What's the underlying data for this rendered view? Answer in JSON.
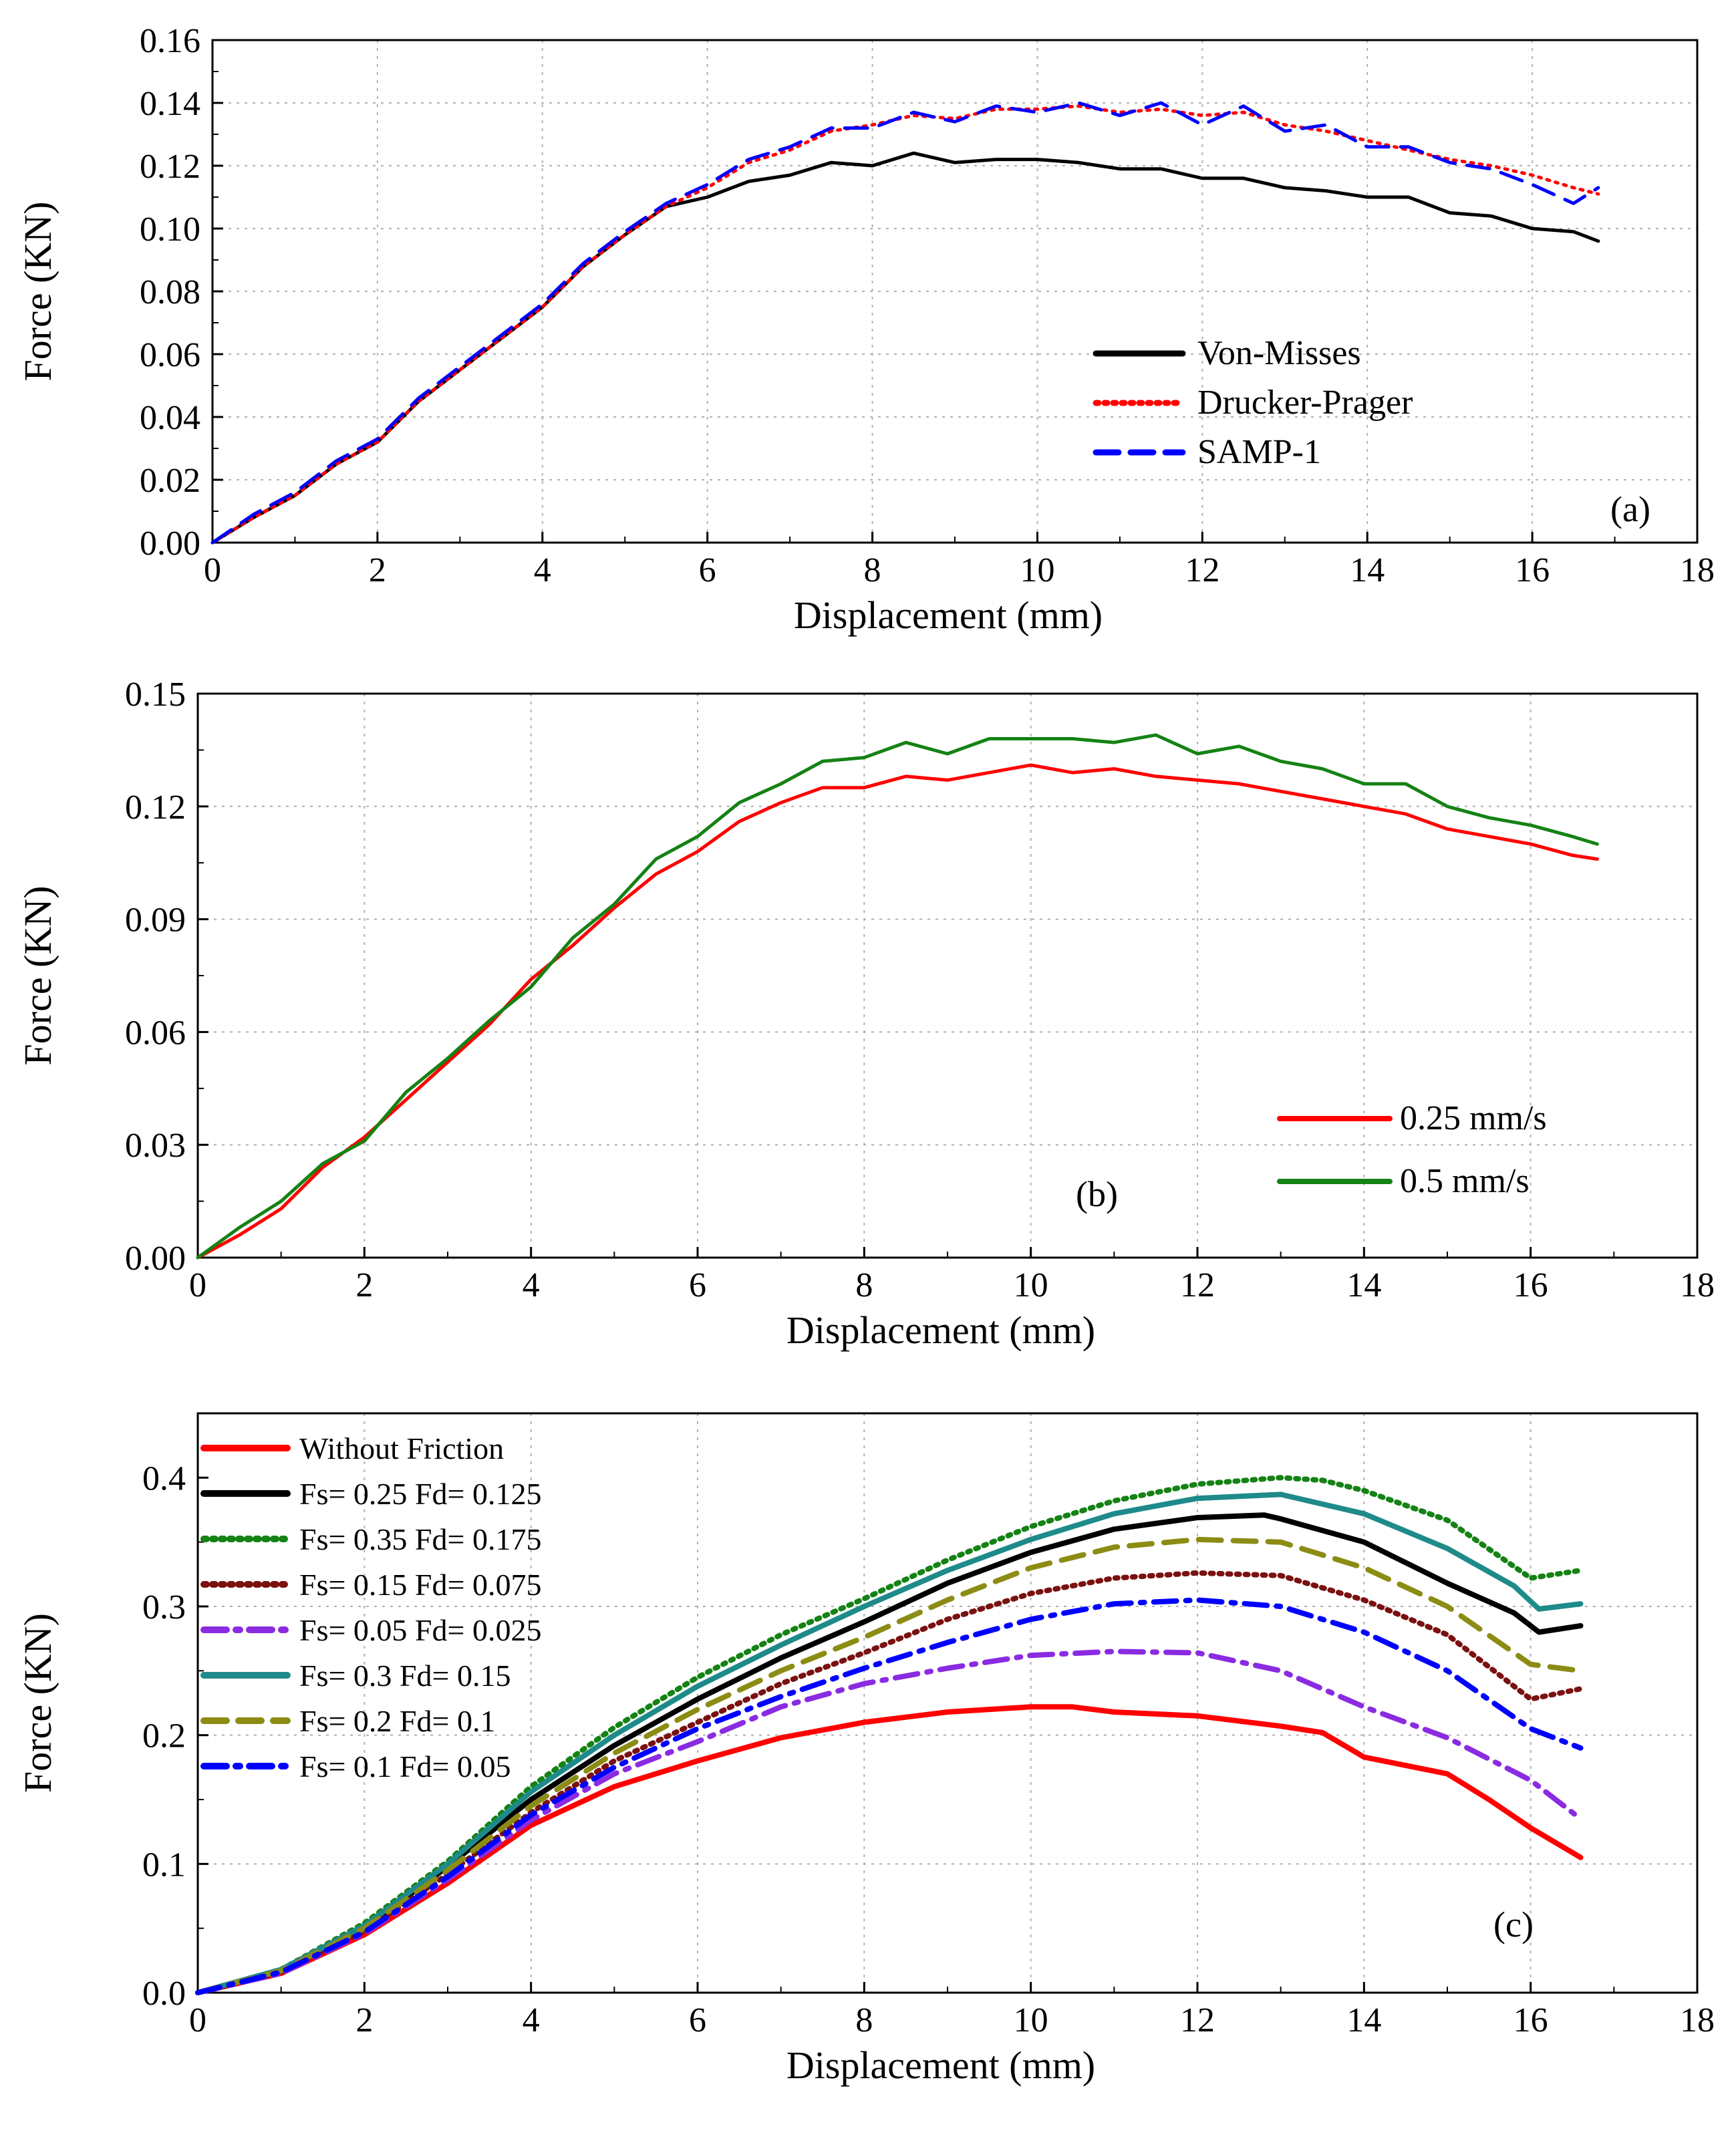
{
  "chart_data": [
    {
      "type": "line",
      "panel_label": "(a)",
      "xlabel": "Displacement (mm)",
      "ylabel": "Force (KN)",
      "xlim": [
        0,
        18
      ],
      "ylim": [
        0,
        0.16
      ],
      "xticks": [
        0,
        2,
        4,
        6,
        8,
        10,
        12,
        14,
        16,
        18
      ],
      "yticks": [
        0.0,
        0.02,
        0.04,
        0.06,
        0.08,
        0.1,
        0.12,
        0.14,
        0.16
      ],
      "ytick_labels": [
        "0.00",
        "0.02",
        "0.04",
        "0.06",
        "0.08",
        "0.10",
        "0.12",
        "0.14",
        "0.16"
      ],
      "grid": true,
      "legend_position": "center-right",
      "series": [
        {
          "name": "Von-Misses",
          "color": "#000000",
          "dash": "solid",
          "x": [
            0,
            0.5,
            1,
            1.5,
            2,
            2.5,
            3,
            3.5,
            4,
            4.5,
            5,
            5.5,
            6,
            6.5,
            7,
            7.5,
            8,
            8.5,
            9,
            9.5,
            10,
            10.5,
            11,
            11.5,
            12,
            12.5,
            13,
            13.5,
            14,
            14.5,
            15,
            15.5,
            16,
            16.5,
            16.8
          ],
          "y": [
            0,
            0.008,
            0.015,
            0.025,
            0.032,
            0.045,
            0.055,
            0.065,
            0.075,
            0.088,
            0.098,
            0.107,
            0.11,
            0.115,
            0.117,
            0.121,
            0.12,
            0.124,
            0.121,
            0.122,
            0.122,
            0.121,
            0.119,
            0.119,
            0.116,
            0.116,
            0.113,
            0.112,
            0.11,
            0.11,
            0.105,
            0.104,
            0.1,
            0.099,
            0.096
          ]
        },
        {
          "name": "Drucker-Prager",
          "color": "#ff0000",
          "dash": "dotted",
          "x": [
            0,
            0.5,
            1,
            1.5,
            2,
            2.5,
            3,
            3.5,
            4,
            4.5,
            5,
            5.5,
            6,
            6.5,
            7,
            7.5,
            8,
            8.5,
            9,
            9.5,
            10,
            10.5,
            11,
            11.5,
            12,
            12.5,
            13,
            13.5,
            14,
            14.5,
            15,
            15.5,
            16,
            16.5,
            16.8
          ],
          "y": [
            0,
            0.008,
            0.015,
            0.025,
            0.032,
            0.045,
            0.055,
            0.065,
            0.075,
            0.088,
            0.098,
            0.107,
            0.113,
            0.121,
            0.125,
            0.131,
            0.133,
            0.136,
            0.135,
            0.138,
            0.138,
            0.139,
            0.137,
            0.138,
            0.136,
            0.137,
            0.133,
            0.131,
            0.128,
            0.125,
            0.122,
            0.12,
            0.117,
            0.113,
            0.111
          ]
        },
        {
          "name": "SAMP-1",
          "color": "#0000ff",
          "dash": "dashed",
          "x": [
            0,
            0.5,
            1,
            1.5,
            2,
            2.5,
            3,
            3.5,
            4,
            4.5,
            5,
            5.5,
            6,
            6.5,
            7,
            7.5,
            8,
            8.5,
            9,
            9.5,
            10,
            10.5,
            11,
            11.5,
            12,
            12.5,
            13,
            13.5,
            14,
            14.5,
            15,
            15.5,
            16,
            16.5,
            16.8
          ],
          "y": [
            0,
            0.009,
            0.016,
            0.026,
            0.033,
            0.046,
            0.056,
            0.066,
            0.076,
            0.089,
            0.099,
            0.108,
            0.114,
            0.122,
            0.126,
            0.132,
            0.132,
            0.137,
            0.134,
            0.139,
            0.137,
            0.14,
            0.136,
            0.14,
            0.133,
            0.139,
            0.131,
            0.133,
            0.126,
            0.126,
            0.121,
            0.119,
            0.114,
            0.108,
            0.113
          ]
        }
      ]
    },
    {
      "type": "line",
      "panel_label": "(b)",
      "xlabel": "Displacement (mm)",
      "ylabel": "Force (KN)",
      "xlim": [
        0,
        18
      ],
      "ylim": [
        0,
        0.15
      ],
      "xticks": [
        0,
        2,
        4,
        6,
        8,
        10,
        12,
        14,
        16,
        18
      ],
      "yticks": [
        0.0,
        0.03,
        0.06,
        0.09,
        0.12,
        0.15
      ],
      "ytick_labels": [
        "0.00",
        "0.03",
        "0.06",
        "0.09",
        "0.12",
        "0.15"
      ],
      "grid": true,
      "legend_position": "bottom-right",
      "series": [
        {
          "name": "0.25 mm/s",
          "color": "#ff0000",
          "dash": "solid",
          "x": [
            0,
            0.5,
            1,
            1.5,
            2,
            2.5,
            3,
            3.5,
            4,
            4.5,
            5,
            5.5,
            6,
            6.5,
            7,
            7.5,
            8,
            8.5,
            9,
            9.5,
            10,
            10.5,
            11,
            11.5,
            12,
            12.5,
            13,
            13.5,
            14,
            14.5,
            15,
            15.5,
            16,
            16.5,
            16.8
          ],
          "y": [
            0,
            0.006,
            0.013,
            0.024,
            0.032,
            0.042,
            0.052,
            0.062,
            0.074,
            0.083,
            0.093,
            0.102,
            0.108,
            0.116,
            0.121,
            0.125,
            0.125,
            0.128,
            0.127,
            0.129,
            0.131,
            0.129,
            0.13,
            0.128,
            0.127,
            0.126,
            0.124,
            0.122,
            0.12,
            0.118,
            0.114,
            0.112,
            0.11,
            0.107,
            0.106
          ]
        },
        {
          "name": "0.5 mm/s",
          "color": "#148214",
          "dash": "solid",
          "x": [
            0,
            0.5,
            1,
            1.5,
            2,
            2.5,
            3,
            3.5,
            4,
            4.5,
            5,
            5.5,
            6,
            6.5,
            7,
            7.5,
            8,
            8.5,
            9,
            9.5,
            10,
            10.5,
            11,
            11.5,
            12,
            12.5,
            13,
            13.5,
            14,
            14.5,
            15,
            15.5,
            16,
            16.5,
            16.8
          ],
          "y": [
            0,
            0.008,
            0.015,
            0.025,
            0.031,
            0.044,
            0.053,
            0.063,
            0.072,
            0.085,
            0.094,
            0.106,
            0.112,
            0.121,
            0.126,
            0.132,
            0.133,
            0.137,
            0.134,
            0.138,
            0.138,
            0.138,
            0.137,
            0.139,
            0.134,
            0.136,
            0.132,
            0.13,
            0.126,
            0.126,
            0.12,
            0.117,
            0.115,
            0.112,
            0.11
          ]
        }
      ]
    },
    {
      "type": "line",
      "panel_label": "(c)",
      "xlabel": "Displacement (mm)",
      "ylabel": "Force (KN)",
      "xlim": [
        0,
        18
      ],
      "ylim": [
        0,
        0.45
      ],
      "xticks": [
        0,
        2,
        4,
        6,
        8,
        10,
        12,
        14,
        16,
        18
      ],
      "yticks": [
        0.0,
        0.1,
        0.2,
        0.3,
        0.4
      ],
      "ytick_labels": [
        "0.0",
        "0.1",
        "0.2",
        "0.3",
        "0.4"
      ],
      "grid": true,
      "legend_position": "top-left",
      "series": [
        {
          "name": "Without Friction",
          "color": "#ff0000",
          "dash": "solid",
          "x": [
            0,
            1,
            2,
            3,
            4,
            5,
            6,
            7,
            8,
            9,
            10,
            10.5,
            11,
            12,
            13,
            13.5,
            14,
            15,
            15.5,
            16,
            16.6
          ],
          "y": [
            0,
            0.015,
            0.045,
            0.085,
            0.13,
            0.16,
            0.18,
            0.198,
            0.21,
            0.218,
            0.222,
            0.222,
            0.218,
            0.215,
            0.207,
            0.202,
            0.183,
            0.17,
            0.15,
            0.128,
            0.105
          ]
        },
        {
          "name": "Fs= 0.25 Fd= 0.125",
          "color": "#000000",
          "dash": "solid",
          "x": [
            0,
            1,
            2,
            3,
            4,
            5,
            6,
            7,
            8,
            9,
            10,
            11,
            12,
            12.8,
            13,
            14,
            15,
            15.8,
            16.1,
            16.6
          ],
          "y": [
            0,
            0.017,
            0.05,
            0.098,
            0.15,
            0.192,
            0.228,
            0.26,
            0.288,
            0.318,
            0.342,
            0.36,
            0.369,
            0.371,
            0.368,
            0.35,
            0.318,
            0.295,
            0.28,
            0.285
          ]
        },
        {
          "name": "Fs= 0.35 Fd= 0.175",
          "color": "#148214",
          "dash": "dotted",
          "x": [
            0,
            1,
            2,
            3,
            4,
            5,
            6,
            7,
            8,
            9,
            10,
            11,
            12,
            13,
            13.5,
            14,
            15,
            16,
            16.6
          ],
          "y": [
            0,
            0.018,
            0.054,
            0.102,
            0.16,
            0.206,
            0.245,
            0.278,
            0.306,
            0.336,
            0.362,
            0.382,
            0.395,
            0.4,
            0.398,
            0.39,
            0.367,
            0.322,
            0.328
          ]
        },
        {
          "name": "Fs= 0.15 Fd= 0.075",
          "color": "#7a1010",
          "dash": "dotted",
          "x": [
            0,
            1,
            2,
            3,
            4,
            5,
            6,
            7,
            8,
            9,
            10,
            11,
            12,
            13,
            14,
            15,
            16,
            16.6
          ],
          "y": [
            0,
            0.016,
            0.048,
            0.092,
            0.14,
            0.18,
            0.21,
            0.24,
            0.264,
            0.29,
            0.31,
            0.322,
            0.326,
            0.324,
            0.305,
            0.278,
            0.228,
            0.236
          ]
        },
        {
          "name": "Fs= 0.05 Fd= 0.025",
          "color": "#8a2be2",
          "dash": "dashdot",
          "x": [
            0,
            1,
            2,
            3,
            4,
            5,
            6,
            7,
            8,
            9,
            10,
            11,
            12,
            13,
            14,
            15,
            16,
            16.6
          ],
          "y": [
            0,
            0.015,
            0.046,
            0.088,
            0.134,
            0.17,
            0.195,
            0.222,
            0.24,
            0.252,
            0.262,
            0.265,
            0.264,
            0.25,
            0.222,
            0.198,
            0.165,
            0.135
          ]
        },
        {
          "name": "Fs= 0.3 Fd= 0.15",
          "color": "#1f8a8a",
          "dash": "solid",
          "x": [
            0,
            1,
            2,
            3,
            4,
            5,
            6,
            7,
            8,
            9,
            10,
            11,
            12,
            13,
            14,
            15,
            15.8,
            16.1,
            16.6
          ],
          "y": [
            0,
            0.018,
            0.052,
            0.1,
            0.156,
            0.2,
            0.238,
            0.27,
            0.3,
            0.328,
            0.352,
            0.372,
            0.384,
            0.387,
            0.372,
            0.345,
            0.316,
            0.298,
            0.302
          ]
        },
        {
          "name": "Fs= 0.2 Fd= 0.1",
          "color": "#8c8c14",
          "dash": "dashed",
          "x": [
            0,
            1,
            2,
            3,
            4,
            5,
            6,
            7,
            8,
            9,
            10,
            11,
            12,
            13,
            14,
            15,
            16,
            16.6
          ],
          "y": [
            0,
            0.017,
            0.05,
            0.095,
            0.145,
            0.186,
            0.22,
            0.25,
            0.276,
            0.305,
            0.33,
            0.346,
            0.352,
            0.35,
            0.33,
            0.3,
            0.255,
            0.25
          ]
        },
        {
          "name": "Fs= 0.1 Fd= 0.05",
          "color": "#0000ff",
          "dash": "dashdot",
          "x": [
            0,
            1,
            2,
            3,
            4,
            5,
            6,
            7,
            8,
            9,
            10,
            11,
            12,
            13,
            14,
            15,
            16,
            16.6
          ],
          "y": [
            0,
            0.016,
            0.047,
            0.09,
            0.138,
            0.175,
            0.205,
            0.23,
            0.252,
            0.272,
            0.29,
            0.302,
            0.305,
            0.3,
            0.28,
            0.25,
            0.205,
            0.19
          ]
        }
      ]
    }
  ]
}
